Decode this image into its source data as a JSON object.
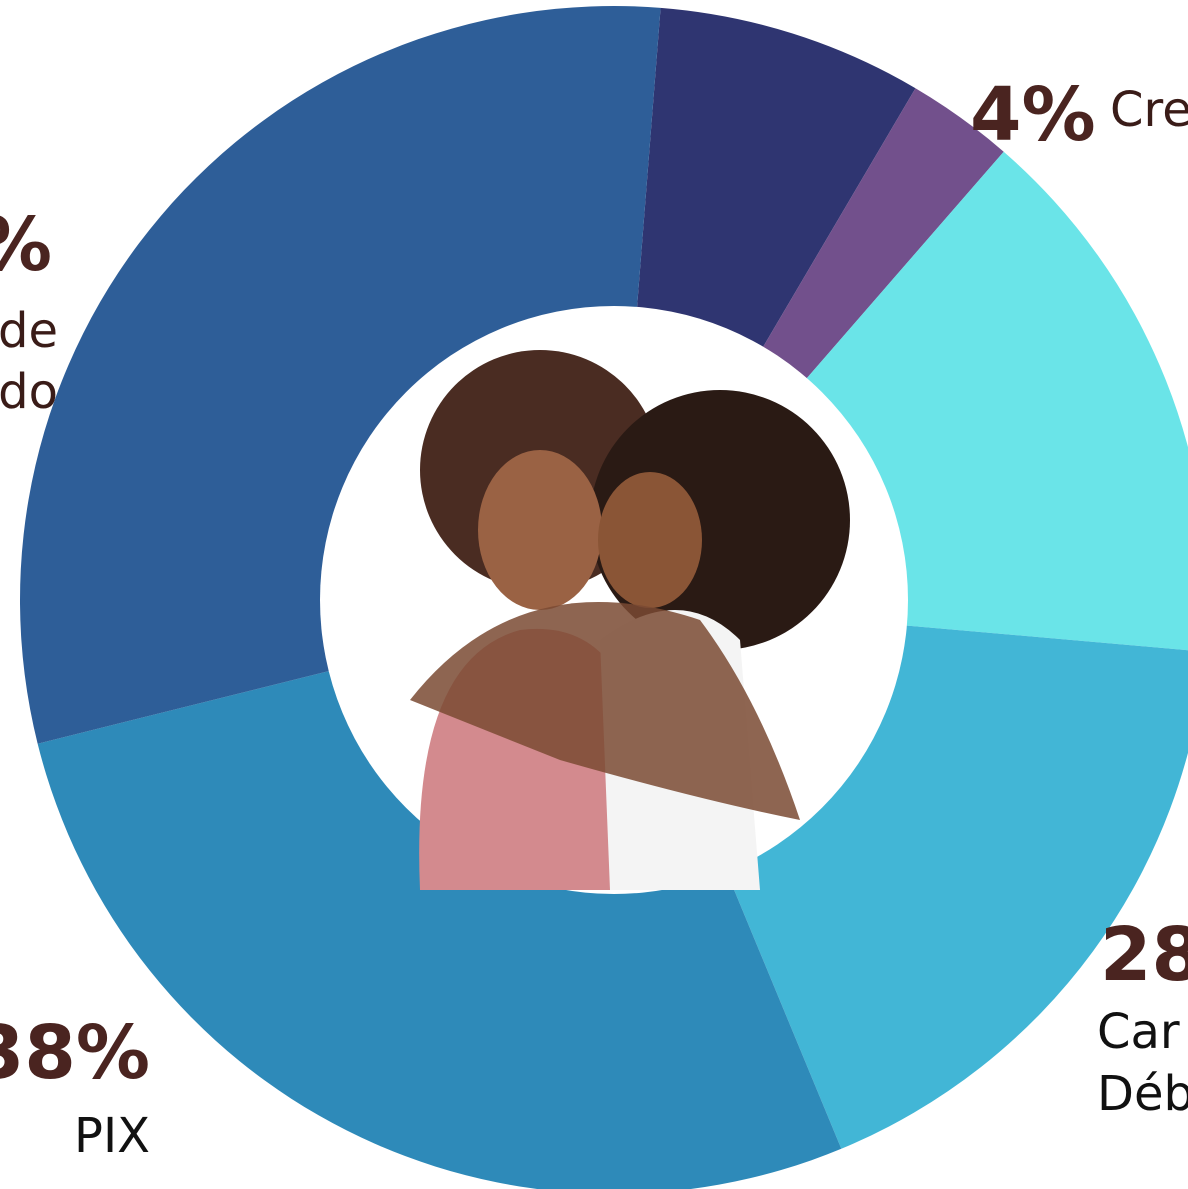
{
  "labels": {
    "top_right_percent": "4%",
    "top_right_name": "Cre",
    "right_percent": "28",
    "right_name_line1": "Car",
    "right_name_line2": "Déb",
    "left_bottom_percent": "38%",
    "left_bottom_name": "PIX",
    "left_top_percent": "%",
    "left_top_name_line1": "de",
    "left_top_name_line2": "do"
  }
}
